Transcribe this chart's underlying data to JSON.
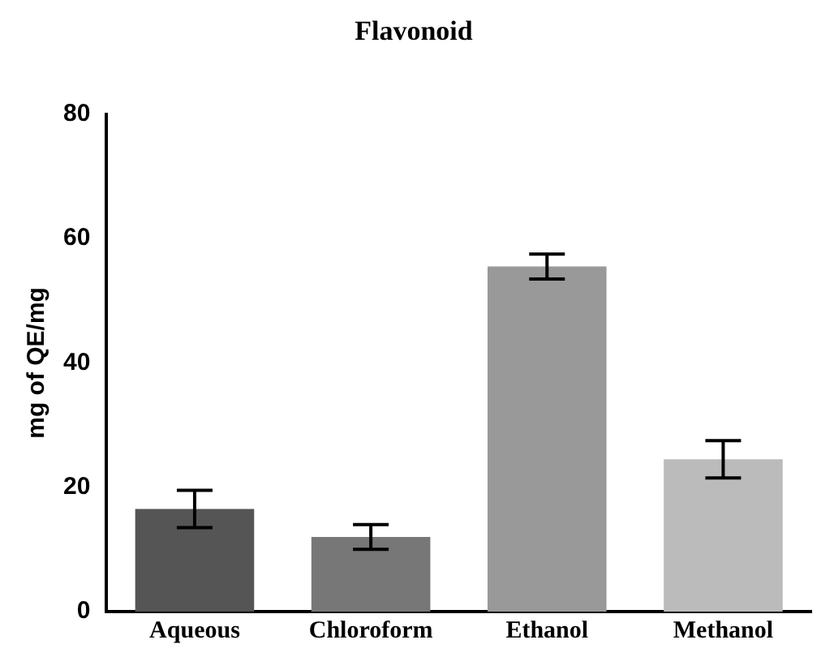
{
  "chart_data": {
    "type": "bar",
    "title": "Flavonoid",
    "ylabel": "mg of QE/mg",
    "categories": [
      "Aqueous",
      "Chloroform",
      "Ethanol",
      "Methanol"
    ],
    "values": [
      16.5,
      12,
      55.5,
      24.5
    ],
    "errors": [
      3,
      2,
      2,
      3
    ],
    "colors": [
      "#555555",
      "#777777",
      "#999999",
      "#bbbbbb"
    ],
    "ylim": [
      0,
      80
    ],
    "yticks": [
      0,
      20,
      40,
      60,
      80
    ],
    "grid": false,
    "legend": false
  }
}
